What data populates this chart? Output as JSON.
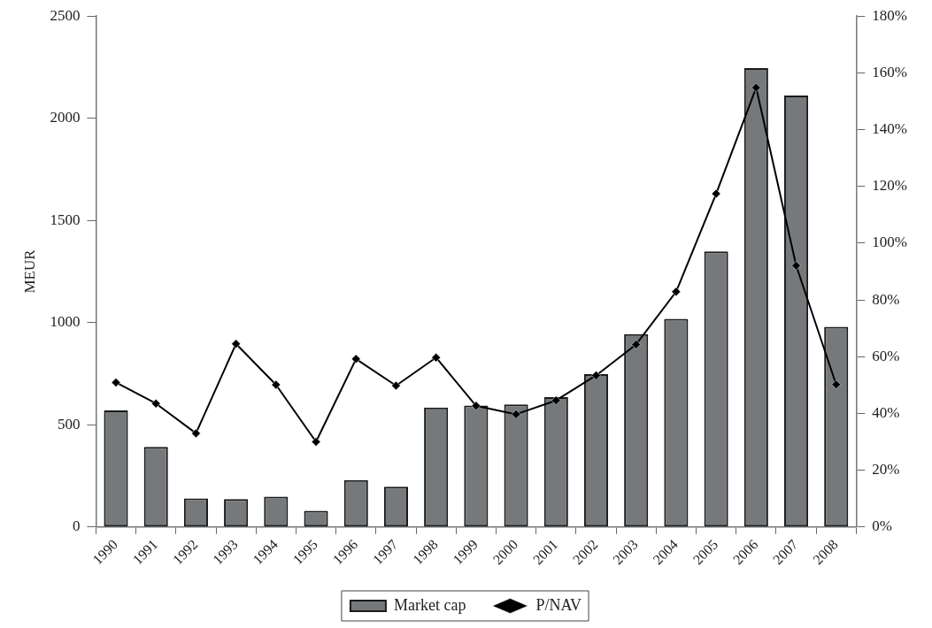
{
  "chart_data": {
    "type": "bar",
    "ylabel": "MEUR",
    "categories": [
      "1990",
      "1991",
      "1992",
      "1993",
      "1994",
      "1995",
      "1996",
      "1997",
      "1998",
      "1999",
      "2000",
      "2001",
      "2002",
      "2003",
      "2004",
      "2005",
      "2006",
      "2007",
      "2008"
    ],
    "series": [
      {
        "name": "Market cap",
        "color": "#76797c",
        "values": [
          570,
          392,
          140,
          137,
          148,
          79,
          230,
          197,
          585,
          594,
          600,
          635,
          748,
          944,
          1018,
          1348,
          2245,
          2111,
          979
        ]
      },
      {
        "name": "P/NAV",
        "type": "line",
        "axis": "y2",
        "color": "#000000",
        "marker": "diamond",
        "line_style": "solid",
        "values": [
          50.9,
          43.5,
          33.0,
          64.5,
          50.1,
          30.0,
          59.2,
          49.8,
          59.7,
          42.7,
          39.7,
          44.6,
          53.4,
          64.3,
          82.9,
          117.4,
          154.8,
          92.1,
          50.2
        ]
      }
    ],
    "ylim": [
      0,
      2500
    ],
    "yticks": [
      0,
      500,
      1000,
      1500,
      2000,
      2500
    ],
    "y2lim": [
      0,
      180
    ],
    "y2ticks": [
      {
        "value": 0,
        "label": "0%"
      },
      {
        "value": 20,
        "label": "20%"
      },
      {
        "value": 40,
        "label": "40%"
      },
      {
        "value": 60,
        "label": "60%"
      },
      {
        "value": 80,
        "label": "80%"
      },
      {
        "value": 100,
        "label": "100%"
      },
      {
        "value": 120,
        "label": "120%"
      },
      {
        "value": 140,
        "label": "140%"
      },
      {
        "value": 160,
        "label": "160%"
      },
      {
        "value": 180,
        "label": "180%"
      }
    ],
    "grid": false,
    "legend": "bottom"
  }
}
